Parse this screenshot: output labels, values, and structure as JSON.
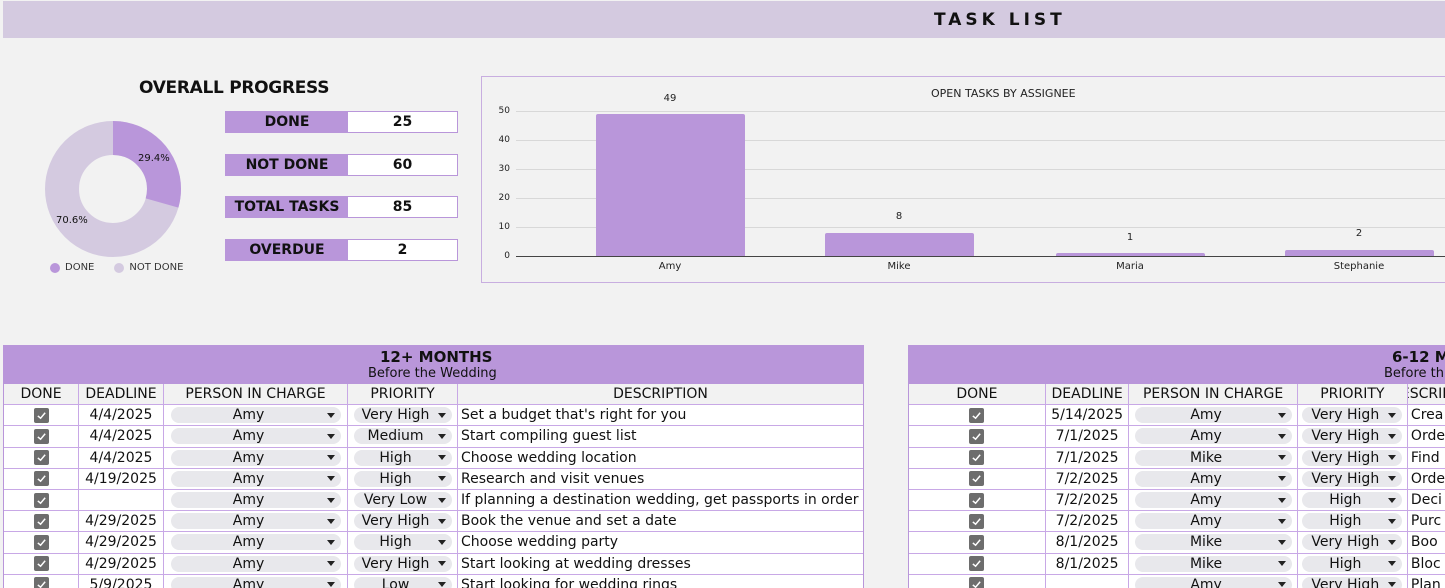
{
  "header": {
    "title": "TASK LIST"
  },
  "overall_progress": {
    "title": "OVERALL PROGRESS",
    "stats": [
      {
        "label": "DONE",
        "value": "25"
      },
      {
        "label": "NOT DONE",
        "value": "60"
      },
      {
        "label": "TOTAL TASKS",
        "value": "85"
      },
      {
        "label": "OVERDUE",
        "value": "2"
      }
    ],
    "donut": {
      "done_pct": "29.4%",
      "not_done_pct": "70.6%",
      "legend_done": "DONE",
      "legend_not_done": "NOT DONE"
    }
  },
  "colors": {
    "accent": "#b996da",
    "light": "#d4cae0",
    "background": "#f2f2f2"
  },
  "chart_data": [
    {
      "type": "pie",
      "title": "OVERALL PROGRESS",
      "categories": [
        "DONE",
        "NOT DONE"
      ],
      "values": [
        29.4,
        70.6
      ],
      "donut": true,
      "legend_position": "bottom"
    },
    {
      "type": "bar",
      "title": "OPEN TASKS BY ASSIGNEE",
      "categories": [
        "Amy",
        "Mike",
        "Maria",
        "Stephanie"
      ],
      "values": [
        49,
        8,
        1,
        2
      ],
      "xlabel": "",
      "ylabel": "",
      "ylim": [
        0,
        50
      ],
      "yticks": [
        0,
        10,
        20,
        30,
        40,
        50
      ],
      "grid": true
    }
  ],
  "bar_chart": {
    "title": "OPEN TASKS BY ASSIGNEE",
    "yticks": [
      "50",
      "40",
      "30",
      "20",
      "10",
      "0"
    ],
    "bars": [
      {
        "label": "Amy",
        "value": "49"
      },
      {
        "label": "Mike",
        "value": "8"
      },
      {
        "label": "Maria",
        "value": "1"
      },
      {
        "label": "Stephanie",
        "value": "2"
      }
    ]
  },
  "columns": [
    "DONE",
    "DEADLINE",
    "PERSON IN CHARGE",
    "PRIORITY",
    "DESCRIPTION"
  ],
  "table_12_months": {
    "title": "12+ MONTHS",
    "subtitle": "Before the Wedding",
    "rows": [
      {
        "done": true,
        "deadline": "4/4/2025",
        "person": "Amy",
        "priority": "Very High",
        "description": "Set a budget that's right for you"
      },
      {
        "done": true,
        "deadline": "4/4/2025",
        "person": "Amy",
        "priority": "Medium",
        "description": "Start compiling guest list"
      },
      {
        "done": true,
        "deadline": "4/4/2025",
        "person": "Amy",
        "priority": "High",
        "description": "Choose wedding location"
      },
      {
        "done": true,
        "deadline": "4/19/2025",
        "person": "Amy",
        "priority": "High",
        "description": "Research and visit venues"
      },
      {
        "done": true,
        "deadline": "",
        "person": "Amy",
        "priority": "Very Low",
        "description": "If planning a destination wedding, get passports in order"
      },
      {
        "done": true,
        "deadline": "4/29/2025",
        "person": "Amy",
        "priority": "Very High",
        "description": "Book the venue and set a date"
      },
      {
        "done": true,
        "deadline": "4/29/2025",
        "person": "Amy",
        "priority": "High",
        "description": "Choose wedding party"
      },
      {
        "done": true,
        "deadline": "4/29/2025",
        "person": "Amy",
        "priority": "Very High",
        "description": "Start looking at wedding dresses"
      },
      {
        "done": true,
        "deadline": "5/9/2025",
        "person": "Amy",
        "priority": "Low",
        "description": "Start looking for wedding rings"
      }
    ]
  },
  "table_6_12_months": {
    "title": "6-12 M",
    "subtitle": "Before th",
    "rows": [
      {
        "done": true,
        "deadline": "5/14/2025",
        "person": "Amy",
        "priority": "Very High",
        "description": "Crea"
      },
      {
        "done": true,
        "deadline": "7/1/2025",
        "person": "Amy",
        "priority": "Very High",
        "description": "Orde"
      },
      {
        "done": true,
        "deadline": "7/1/2025",
        "person": "Mike",
        "priority": "Very High",
        "description": "Find"
      },
      {
        "done": true,
        "deadline": "7/2/2025",
        "person": "Amy",
        "priority": "Very High",
        "description": "Orde"
      },
      {
        "done": true,
        "deadline": "7/2/2025",
        "person": "Amy",
        "priority": "High",
        "description": "Deci"
      },
      {
        "done": true,
        "deadline": "7/2/2025",
        "person": "Amy",
        "priority": "High",
        "description": "Purc"
      },
      {
        "done": true,
        "deadline": "8/1/2025",
        "person": "Mike",
        "priority": "Very High",
        "description": "Boo"
      },
      {
        "done": true,
        "deadline": "8/1/2025",
        "person": "Mike",
        "priority": "High",
        "description": "Bloc"
      },
      {
        "done": true,
        "deadline": "",
        "person": "Amy",
        "priority": "Very High",
        "description": "Plan"
      }
    ]
  }
}
